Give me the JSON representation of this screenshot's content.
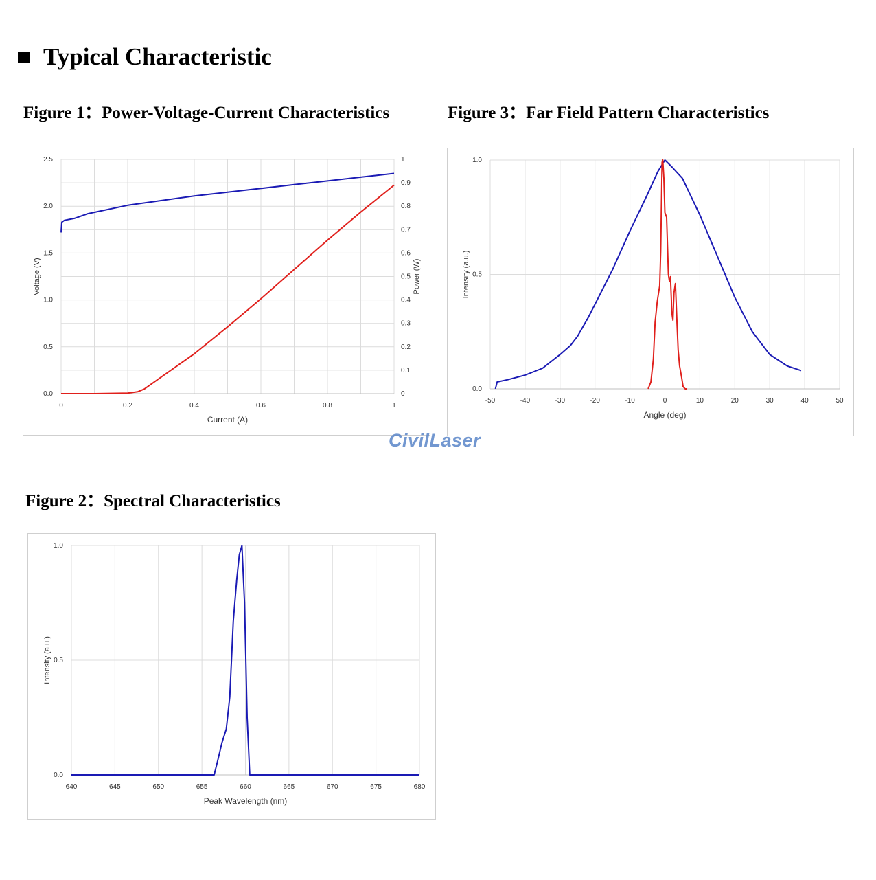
{
  "page": {
    "section_title": "Typical Characteristic",
    "watermark": "CivilLaser"
  },
  "figures": {
    "fig1_title": "Figure 1：Power-Voltage-Current Characteristics",
    "fig2_title": "Figure 2：Spectral Characteristics",
    "fig3_title": "Figure 3：Far Field Pattern Characteristics"
  },
  "chart_data": [
    {
      "id": "fig1",
      "type": "line",
      "title": "",
      "xlabel": "Current (A)",
      "ylabel": "Voltage (V)",
      "y2label": "Power (W)",
      "xlim": [
        0,
        1
      ],
      "ylim": [
        0,
        2.5
      ],
      "y2lim": [
        0,
        1
      ],
      "xticks": [
        "0",
        "0.2",
        "0.4",
        "0.6",
        "0.8",
        "1"
      ],
      "xtick_values": [
        0,
        0.2,
        0.4,
        0.6,
        0.8,
        1
      ],
      "yticks": [
        "0.0",
        "0.5",
        "1.0",
        "1.5",
        "2.0",
        "2.5"
      ],
      "ytick_values": [
        0,
        0.5,
        1.0,
        1.5,
        2.0,
        2.5
      ],
      "y2ticks": [
        "0",
        "0.1",
        "0.2",
        "0.3",
        "0.4",
        "0.5",
        "0.6",
        "0.7",
        "0.8",
        "0.9",
        "1"
      ],
      "y2tick_values": [
        0,
        0.1,
        0.2,
        0.3,
        0.4,
        0.5,
        0.6,
        0.7,
        0.8,
        0.9,
        1.0
      ],
      "grid": true,
      "series": [
        {
          "axis": "left",
          "color": "#1a1ab4",
          "x": [
            0,
            0.002,
            0.01,
            0.04,
            0.08,
            0.12,
            0.2,
            0.3,
            0.4,
            0.5,
            0.6,
            0.7,
            0.8,
            0.9,
            1.0
          ],
          "y": [
            1.72,
            1.83,
            1.85,
            1.87,
            1.92,
            1.95,
            2.01,
            2.06,
            2.11,
            2.15,
            2.19,
            2.23,
            2.27,
            2.31,
            2.35
          ]
        },
        {
          "axis": "right",
          "color": "#e0201c",
          "x": [
            0,
            0.1,
            0.2,
            0.23,
            0.25,
            0.3,
            0.4,
            0.5,
            0.6,
            0.7,
            0.8,
            0.9,
            1.0
          ],
          "y": [
            0,
            0,
            0.002,
            0.008,
            0.02,
            0.07,
            0.17,
            0.285,
            0.405,
            0.53,
            0.655,
            0.775,
            0.89
          ]
        }
      ]
    },
    {
      "id": "fig2",
      "type": "line",
      "title": "",
      "xlabel": "Peak Wavelength (nm)",
      "ylabel": "Intensity (a.u.)",
      "xlim": [
        640,
        680
      ],
      "ylim": [
        0,
        1.0
      ],
      "xticks": [
        "640",
        "645",
        "650",
        "655",
        "660",
        "665",
        "670",
        "675",
        "680"
      ],
      "xtick_values": [
        640,
        645,
        650,
        655,
        660,
        665,
        670,
        675,
        680
      ],
      "yticks": [
        "0.0",
        "0.5",
        "1.0"
      ],
      "ytick_values": [
        0,
        0.5,
        1.0
      ],
      "grid": true,
      "series": [
        {
          "color": "#1a1ab4",
          "x": [
            640,
            656.4,
            656.8,
            657.3,
            657.8,
            658.2,
            658.6,
            659.0,
            659.3,
            659.6,
            659.9,
            660.2,
            660.5,
            680
          ],
          "y": [
            0,
            0,
            0.06,
            0.14,
            0.2,
            0.34,
            0.67,
            0.85,
            0.96,
            1.0,
            0.75,
            0.25,
            0,
            0
          ]
        }
      ]
    },
    {
      "id": "fig3",
      "type": "line",
      "title": "",
      "xlabel": "Angle (deg)",
      "ylabel": "Intensity (a.u.)",
      "xlim": [
        -50,
        50
      ],
      "ylim": [
        0,
        1.0
      ],
      "xticks": [
        "-50",
        "-40",
        "-30",
        "-20",
        "-10",
        "0",
        "10",
        "20",
        "30",
        "40",
        "50"
      ],
      "xtick_values": [
        -50,
        -40,
        -30,
        -20,
        -10,
        0,
        10,
        20,
        30,
        40,
        50
      ],
      "yticks": [
        "0.0",
        "0.5",
        "1.0"
      ],
      "ytick_values": [
        0,
        0.5,
        1.0
      ],
      "grid": true,
      "series": [
        {
          "color": "#1a1ab4",
          "x": [
            -48.5,
            -48,
            -45,
            -40,
            -35,
            -30,
            -27,
            -25,
            -22,
            -20,
            -15,
            -10,
            -5,
            -2,
            0,
            2,
            5,
            10,
            15,
            20,
            25,
            27,
            30,
            35,
            39
          ],
          "y": [
            0,
            0.03,
            0.04,
            0.06,
            0.09,
            0.15,
            0.19,
            0.23,
            0.31,
            0.37,
            0.52,
            0.69,
            0.85,
            0.95,
            1.0,
            0.97,
            0.92,
            0.76,
            0.58,
            0.4,
            0.25,
            0.21,
            0.15,
            0.1,
            0.08
          ]
        },
        {
          "color": "#e0201c",
          "x": [
            -4.8,
            -4,
            -3.3,
            -2.8,
            -2.2,
            -1.8,
            -1.5,
            -1.2,
            -0.8,
            -0.6,
            -0.3,
            0,
            0.5,
            1.0,
            1.3,
            1.6,
            2.0,
            2.3,
            2.6,
            3.0,
            3.4,
            3.8,
            4.2,
            4.8,
            5.2,
            5.8,
            6.2
          ],
          "y": [
            0,
            0.03,
            0.13,
            0.29,
            0.38,
            0.42,
            0.45,
            0.6,
            0.99,
            1.0,
            0.92,
            0.77,
            0.75,
            0.5,
            0.47,
            0.49,
            0.33,
            0.3,
            0.42,
            0.46,
            0.31,
            0.17,
            0.1,
            0.05,
            0.01,
            0,
            0
          ]
        }
      ]
    }
  ]
}
